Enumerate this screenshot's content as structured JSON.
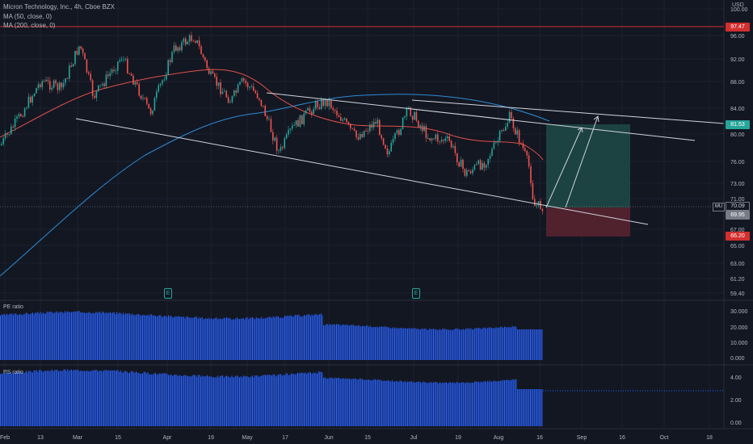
{
  "header": {
    "symbol_line": "Micron Technology, Inc., 4h, Cboe BZX",
    "ma50_label": "MA (50, close, 0)",
    "ma200_label": "MA (200, close, 0)",
    "currency": "USD"
  },
  "price_axis": {
    "ticks": [
      "100.00",
      "96.00",
      "92.00",
      "88.00",
      "84.00",
      "80.00",
      "76.00",
      "73.00",
      "71.00",
      "67.00",
      "65.00",
      "63.00",
      "61.20",
      "59.40"
    ]
  },
  "price_tags": {
    "resistance": "97.47",
    "target": "81.53",
    "ticker": "MU",
    "last": "70.09",
    "ma_value": "69.95",
    "stop": "66.20"
  },
  "time_axis": {
    "labels": [
      "Feb",
      "13",
      "Mar",
      "15",
      "Apr",
      "19",
      "May",
      "17",
      "Jun",
      "15",
      "Jul",
      "19",
      "Aug",
      "16",
      "Sep",
      "16",
      "Oct",
      "18"
    ]
  },
  "earnings_marker": "E",
  "pe_pane": {
    "title": "PE ratio",
    "ticks": [
      "30.000",
      "20.000",
      "10.000",
      "0.000"
    ]
  },
  "ps_pane": {
    "title": "PS ratio",
    "ticks": [
      "4.00",
      "2.00",
      "0.00"
    ]
  },
  "colors": {
    "background": "#131722",
    "up": "#26a69a",
    "down": "#ef5350",
    "ma50": "#e0504a",
    "ma200": "#2e8cd6",
    "resistance": "#d32f2f",
    "histogram": "#2962ff",
    "profit_zone": "#1e4a48",
    "loss_zone": "#5a2430"
  }
}
